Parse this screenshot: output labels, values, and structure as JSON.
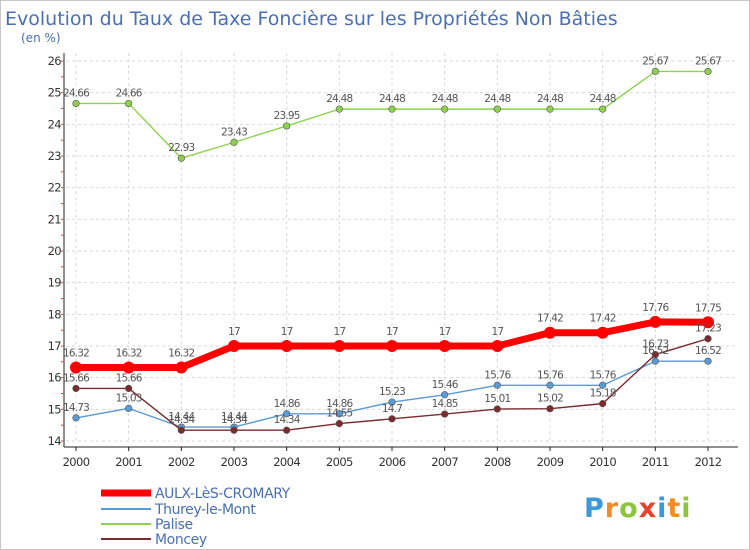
{
  "chart_data": {
    "type": "line",
    "title": "Evolution du Taux de Taxe Foncière sur les Propriétés Non Bâties",
    "ylabel": "(en %)",
    "xlabel": "",
    "ylim": [
      14,
      26
    ],
    "y_ticks": [
      14,
      15,
      16,
      17,
      18,
      19,
      20,
      21,
      22,
      23,
      24,
      25,
      26
    ],
    "grid": true,
    "legend_position": "bottom-left",
    "categories": [
      "2000",
      "2001",
      "2002",
      "2003",
      "2004",
      "2005",
      "2006",
      "2007",
      "2008",
      "2009",
      "2010",
      "2011",
      "2012"
    ],
    "series": [
      {
        "name": "AULX-LèS-CROMARY",
        "color": "#ff0000",
        "values": [
          16.32,
          16.32,
          16.32,
          17,
          17,
          17,
          17,
          17,
          17,
          17.42,
          17.42,
          17.76,
          17.75
        ],
        "labels": [
          "16.32",
          "16.32",
          "16.32",
          "17",
          "17",
          "17",
          "17",
          "17",
          "17",
          "17.42",
          "17.42",
          "17.76",
          "17.75"
        ]
      },
      {
        "name": "Thurey-le-Mont",
        "color": "#5b9bd5",
        "values": [
          14.73,
          15.03,
          14.44,
          14.44,
          14.86,
          14.86,
          15.23,
          15.46,
          15.76,
          15.76,
          15.76,
          16.52,
          16.52
        ],
        "labels": [
          "14.73",
          "15.03",
          "14.44",
          "14.44",
          "14.86",
          "14.86",
          "15.23",
          "15.46",
          "15.76",
          "15.76",
          "15.76",
          "16.52",
          "16.52"
        ]
      },
      {
        "name": "Palise",
        "color": "#8fd14f",
        "values": [
          24.66,
          24.66,
          22.93,
          23.43,
          23.95,
          24.48,
          24.48,
          24.48,
          24.48,
          24.48,
          24.48,
          25.67,
          25.67
        ],
        "labels": [
          "24.66",
          "24.66",
          "22.93",
          "23.43",
          "23.95",
          "24.48",
          "24.48",
          "24.48",
          "24.48",
          "24.48",
          "24.48",
          "25.67",
          "25.67"
        ]
      },
      {
        "name": "Moncey",
        "color": "#7b2b2b",
        "values": [
          15.66,
          15.66,
          14.34,
          14.34,
          14.34,
          14.55,
          14.7,
          14.85,
          15.01,
          15.02,
          15.18,
          16.73,
          17.23
        ],
        "labels": [
          "15.66",
          "15.66",
          "14.34",
          "14.34",
          "14.34",
          "14.55",
          "14.7",
          "14.85",
          "15.01",
          "15.02",
          "15.18",
          "16.73",
          "17.23"
        ]
      }
    ]
  },
  "logo": {
    "text": "Proxiti"
  }
}
